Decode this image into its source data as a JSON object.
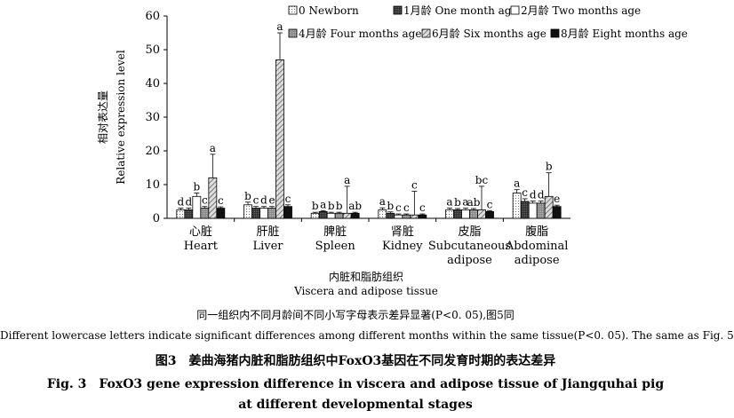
{
  "chart_data": {
    "type": "bar",
    "ylabel_cn": "相对表达量",
    "ylabel_en": "Relative expression level",
    "xlabel_cn": "内脏和脂肪组织",
    "xlabel_en": "Viscera and adipose tissue",
    "ylim": [
      0,
      60
    ],
    "yticks": [
      "0",
      "10",
      "20",
      "30",
      "40",
      "50",
      "60"
    ],
    "categories": [
      {
        "cn": "心脏",
        "en": [
          "Heart"
        ]
      },
      {
        "cn": "肝脏",
        "en": [
          "Liver"
        ]
      },
      {
        "cn": "脾脏",
        "en": [
          "Spleen"
        ]
      },
      {
        "cn": "肾脏",
        "en": [
          "Kidney"
        ]
      },
      {
        "cn": "皮脂",
        "en": [
          "Subcutaneous",
          "adipose"
        ]
      },
      {
        "cn": "腹脂",
        "en": [
          "Abdominal",
          "adipose"
        ]
      }
    ],
    "series": [
      {
        "name": "0 Newborn",
        "values": [
          2.5,
          4.0,
          1.5,
          2.5,
          2.5,
          7.5
        ],
        "errors": [
          0.5,
          0.8,
          0.3,
          0.6,
          0.5,
          1.0
        ],
        "letters": [
          "d",
          "b",
          "b",
          "a",
          "a",
          "a"
        ],
        "pattern": "dots"
      },
      {
        "name": "1月龄 One month age",
        "values": [
          2.5,
          3.0,
          2.0,
          1.5,
          2.5,
          5.0
        ],
        "errors": [
          0.5,
          0.5,
          0.3,
          0.4,
          0.4,
          0.8
        ],
        "letters": [
          "d",
          "c",
          "a",
          "b",
          "b",
          "c"
        ],
        "pattern": "dark"
      },
      {
        "name": "2月龄 Two months age",
        "values": [
          6.5,
          3.0,
          1.5,
          1.0,
          2.5,
          4.5
        ],
        "errors": [
          1.0,
          0.5,
          0.3,
          0.3,
          0.5,
          0.6
        ],
        "letters": [
          "b",
          "d",
          "b",
          "c",
          "a",
          "d"
        ],
        "pattern": "white"
      },
      {
        "name": "4月龄 Four months age",
        "values": [
          3.0,
          3.0,
          1.5,
          1.0,
          2.5,
          4.5
        ],
        "errors": [
          0.5,
          0.5,
          0.3,
          0.3,
          0.4,
          0.6
        ],
        "letters": [
          "c",
          "e",
          "b",
          "c",
          "ab",
          "d"
        ],
        "pattern": "grey"
      },
      {
        "name": "6月龄 Six months  age",
        "values": [
          12.0,
          47.0,
          1.5,
          1.0,
          2.5,
          6.5
        ],
        "errors": [
          7.0,
          8.0,
          8.0,
          7.0,
          7.0,
          7.0
        ],
        "letters": [
          "a",
          "a",
          "a",
          "c",
          "bc",
          "b"
        ],
        "pattern": "hatch"
      },
      {
        "name": "8月龄 Eight months age",
        "values": [
          3.0,
          3.5,
          1.5,
          1.0,
          2.0,
          3.5
        ],
        "errors": [
          0.4,
          0.5,
          0.3,
          0.3,
          0.3,
          0.4
        ],
        "letters": [
          "c",
          "c",
          "ab",
          "c",
          "c",
          "e"
        ],
        "pattern": "black"
      }
    ],
    "legend_position": "top"
  },
  "notes": {
    "cn": "同一组织内不同月龄间不同小写字母表示差异显著(P<0. 05),图5同",
    "en": "Different lowercase letters indicate significant differences among different months within the same tissue(P<0. 05). The same as Fig. 5"
  },
  "caption": {
    "cn": "图3　姜曲海猪内脏和脂肪组织中FoxO3基因在不同发育时期的表达差异",
    "en_line1": "Fig. 3　FoxO3 gene expression difference in viscera and adipose tissue of Jiangquhai pig",
    "en_line2": "at different developmental stages"
  }
}
